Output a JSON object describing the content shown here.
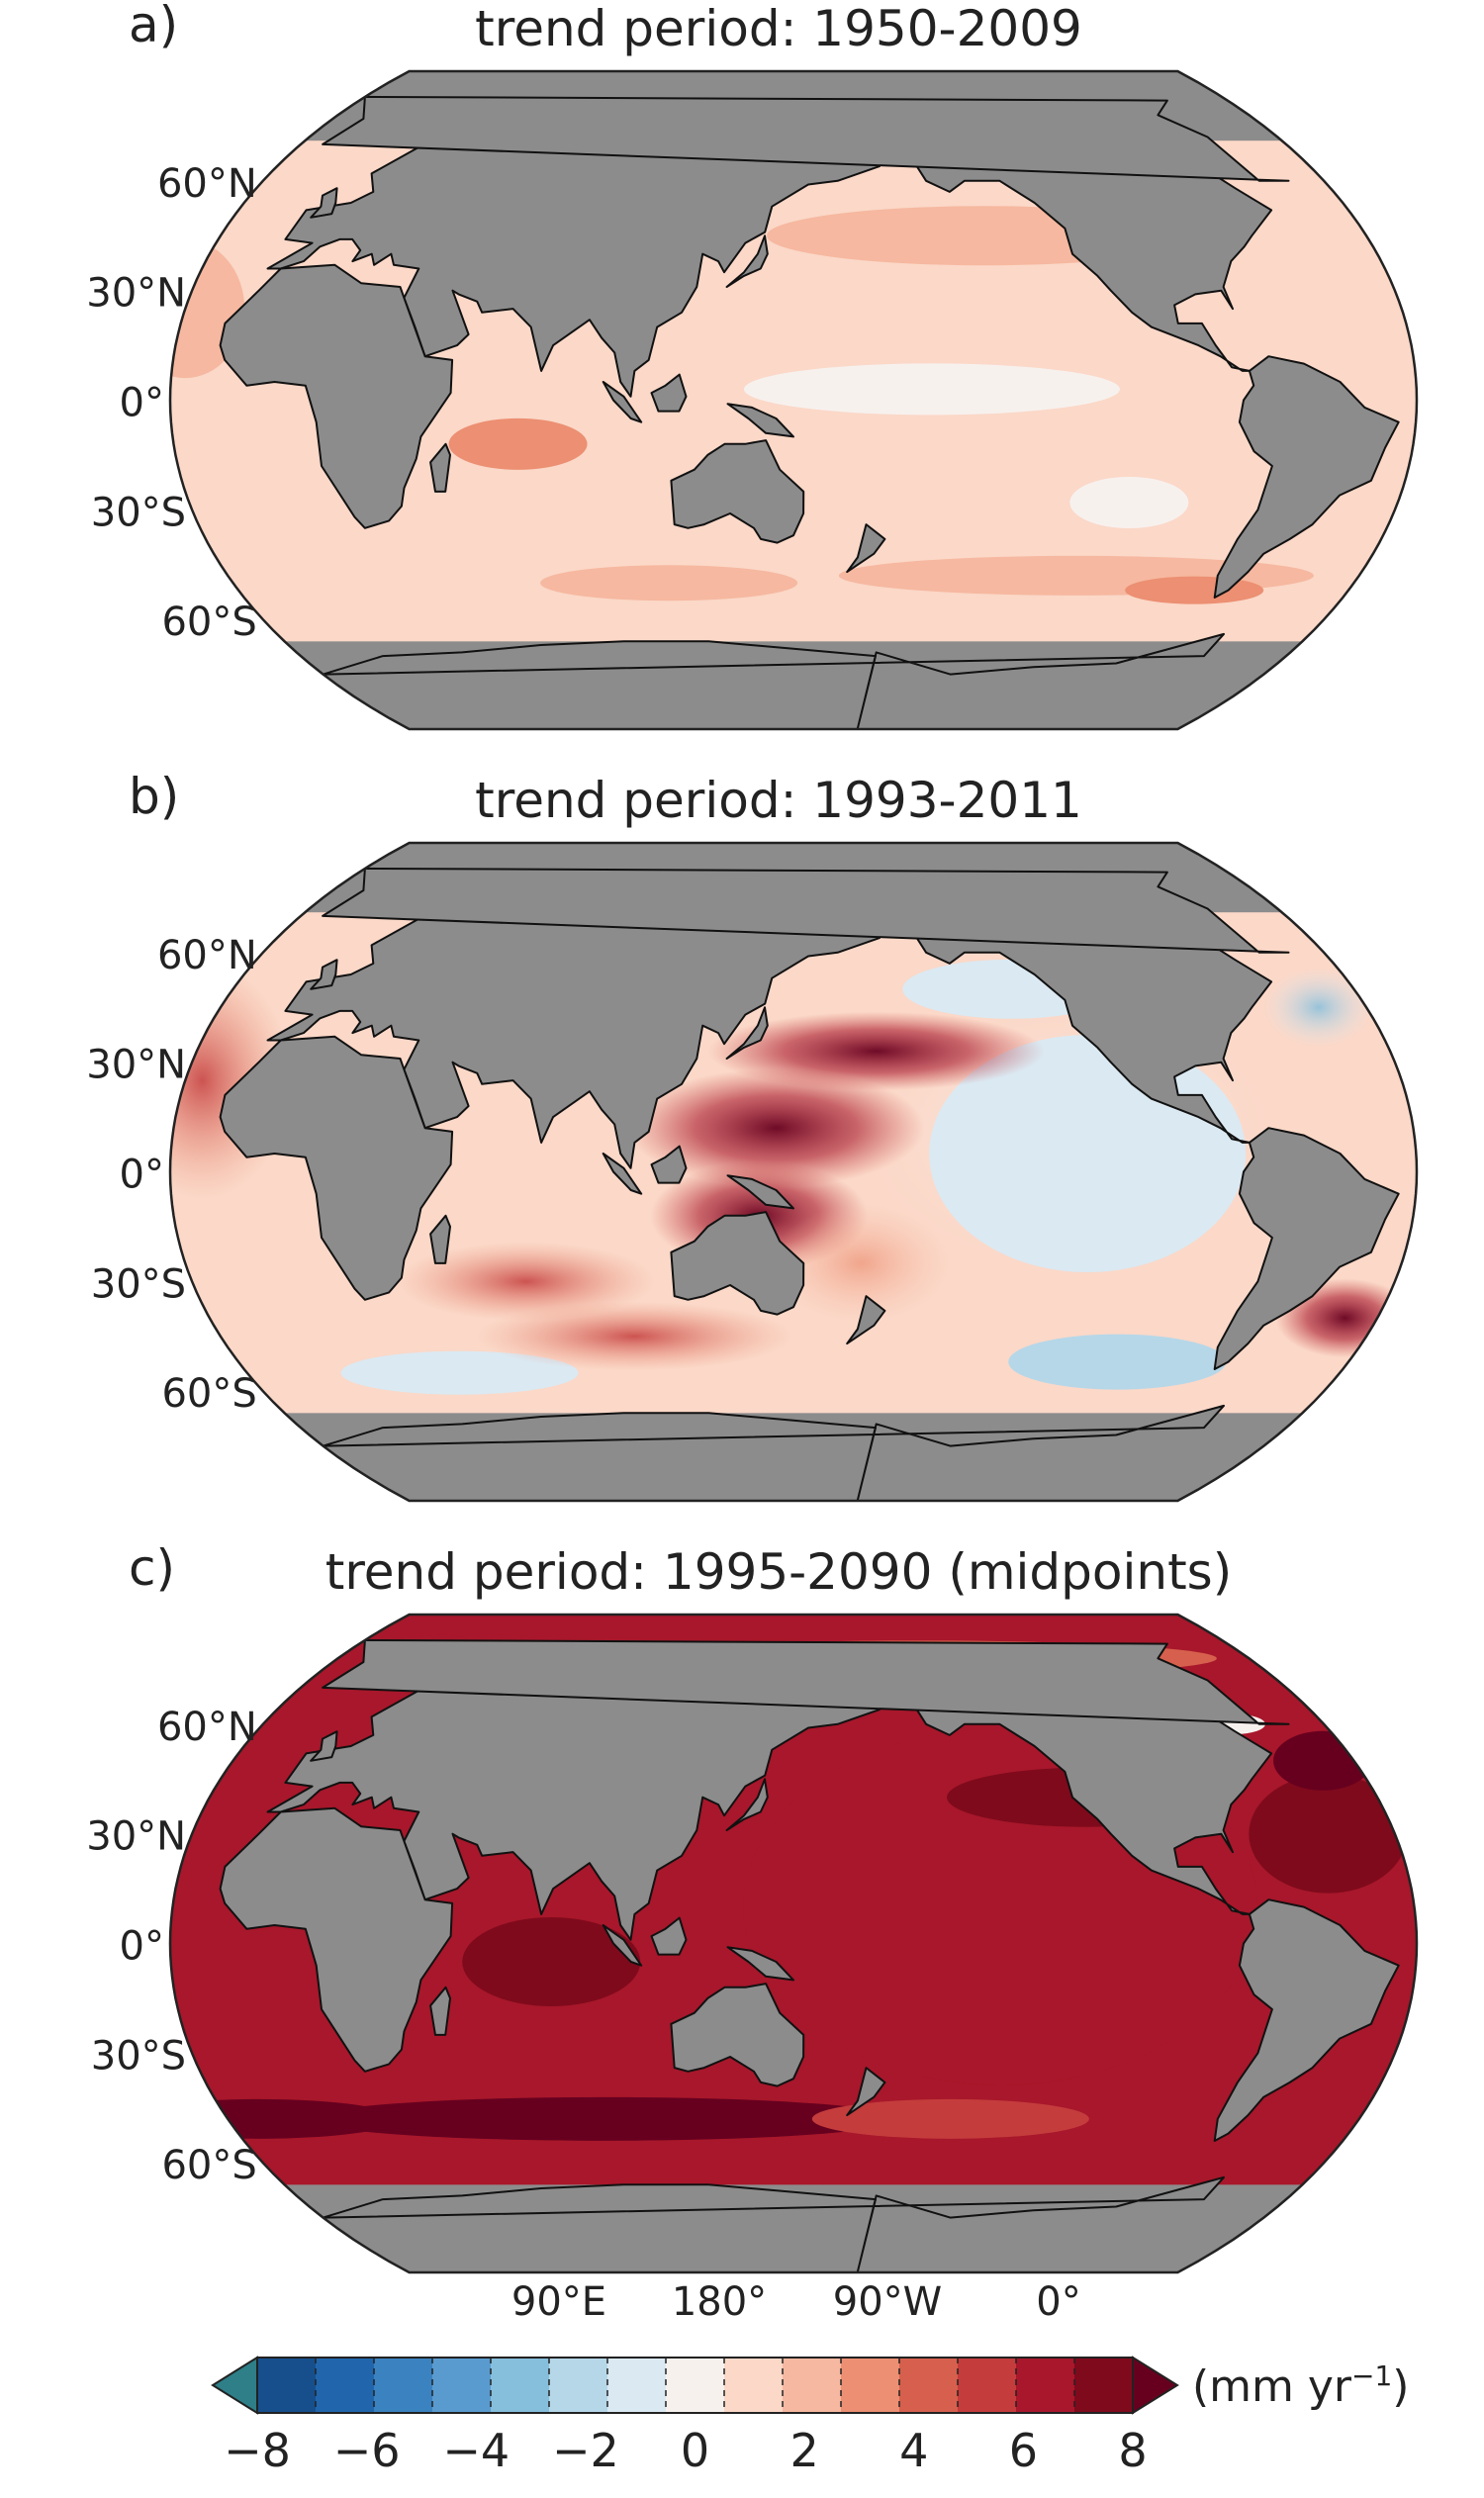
{
  "figure": {
    "panels": [
      {
        "letter": "a)",
        "title": "trend period: 1950-2009",
        "style": "weak"
      },
      {
        "letter": "b)",
        "title": "trend period: 1993-2011",
        "style": "observed"
      },
      {
        "letter": "c)",
        "title": "trend period: 1995-2090 (midpoints)",
        "style": "projected"
      }
    ],
    "latitude_labels": [
      "60°N",
      "30°N",
      "0°",
      "30°S",
      "60°S"
    ],
    "longitude_labels": [
      "90°E",
      "180°",
      "90°W",
      "0°"
    ],
    "colorbar": {
      "tick_labels": [
        "−8",
        "−6",
        "−4",
        "−2",
        "0",
        "2",
        "4",
        "6",
        "8"
      ],
      "unit_base": "(mm yr",
      "unit_exp": "−1",
      "unit_close": ")",
      "colors": [
        "#053061",
        "#164f8c",
        "#2166ac",
        "#3b82c0",
        "#5a9bcf",
        "#86bfdc",
        "#b6d7e8",
        "#dbe9f2",
        "#f7f1ee",
        "#fbd8c8",
        "#f6b8a0",
        "#ec8f72",
        "#d6604d",
        "#c43c3c",
        "#a8172b",
        "#7f0a1c",
        "#67001f"
      ]
    },
    "colors": {
      "land": "#8c8c8c",
      "coast": "#111111",
      "frame": "#222222"
    }
  }
}
